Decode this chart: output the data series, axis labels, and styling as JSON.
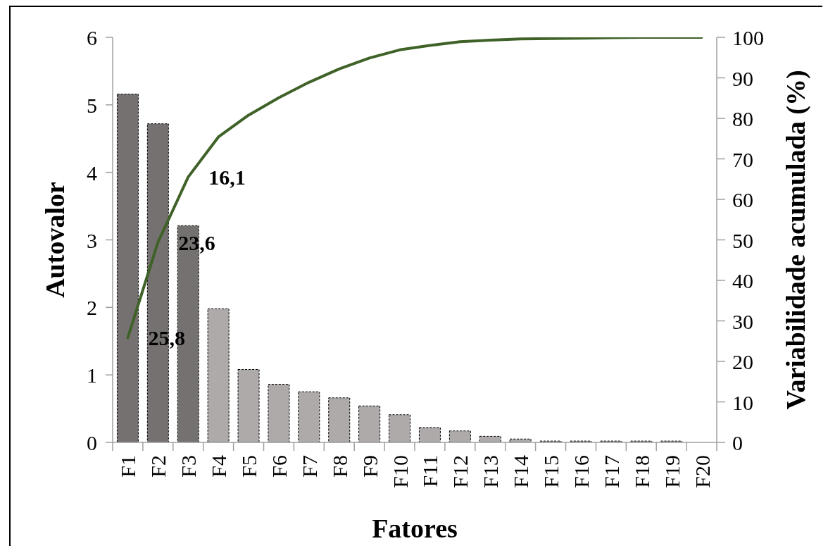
{
  "chart_data": {
    "type": "bar",
    "xlabel": "Fatores",
    "ylabel": "Autovalor",
    "y2label": "Variabilidade acumulada (%)",
    "categories": [
      "F1",
      "F2",
      "F3",
      "F4",
      "F5",
      "F6",
      "F7",
      "F8",
      "F9",
      "F10",
      "F11",
      "F12",
      "F13",
      "F14",
      "F15",
      "F16",
      "F17",
      "F18",
      "F19",
      "F20"
    ],
    "series": [
      {
        "type": "bar",
        "colors": [
          "#767171",
          "#767171",
          "#767171",
          "#aeaaaa",
          "#aeaaaa",
          "#aeaaaa",
          "#aeaaaa",
          "#aeaaaa",
          "#aeaaaa",
          "#aeaaaa",
          "#aeaaaa",
          "#aeaaaa",
          "#aeaaaa",
          "#aeaaaa",
          "#aeaaaa",
          "#aeaaaa",
          "#aeaaaa",
          "#aeaaaa",
          "#aeaaaa",
          "#aeaaaa"
        ],
        "values": [
          5.16,
          4.72,
          3.21,
          1.98,
          1.08,
          0.86,
          0.75,
          0.66,
          0.54,
          0.41,
          0.22,
          0.17,
          0.09,
          0.05,
          0.02,
          0.02,
          0.02,
          0.02,
          0.02,
          0
        ]
      },
      {
        "type": "line",
        "axis": "y2",
        "color": "#3f6228",
        "values": [
          25.8,
          49.4,
          65.5,
          75.4,
          80.8,
          85.1,
          88.9,
          92.2,
          94.9,
          96.9,
          98.0,
          98.9,
          99.3,
          99.6,
          99.7,
          99.8,
          99.9,
          100,
          100,
          100
        ]
      }
    ],
    "ylim": [
      0,
      6
    ],
    "yticks": [
      0,
      1,
      2,
      3,
      4,
      5,
      6
    ],
    "y2lim": [
      0,
      100
    ],
    "y2ticks": [
      0,
      10,
      20,
      30,
      40,
      50,
      60,
      70,
      80,
      90,
      100
    ],
    "annotations": [
      {
        "text": "25,8",
        "x": "F1",
        "y": 1.55
      },
      {
        "text": "23,6",
        "x": "F2",
        "y": 2.96
      },
      {
        "text": "16,1",
        "x": "F3",
        "y": 3.93
      }
    ]
  }
}
